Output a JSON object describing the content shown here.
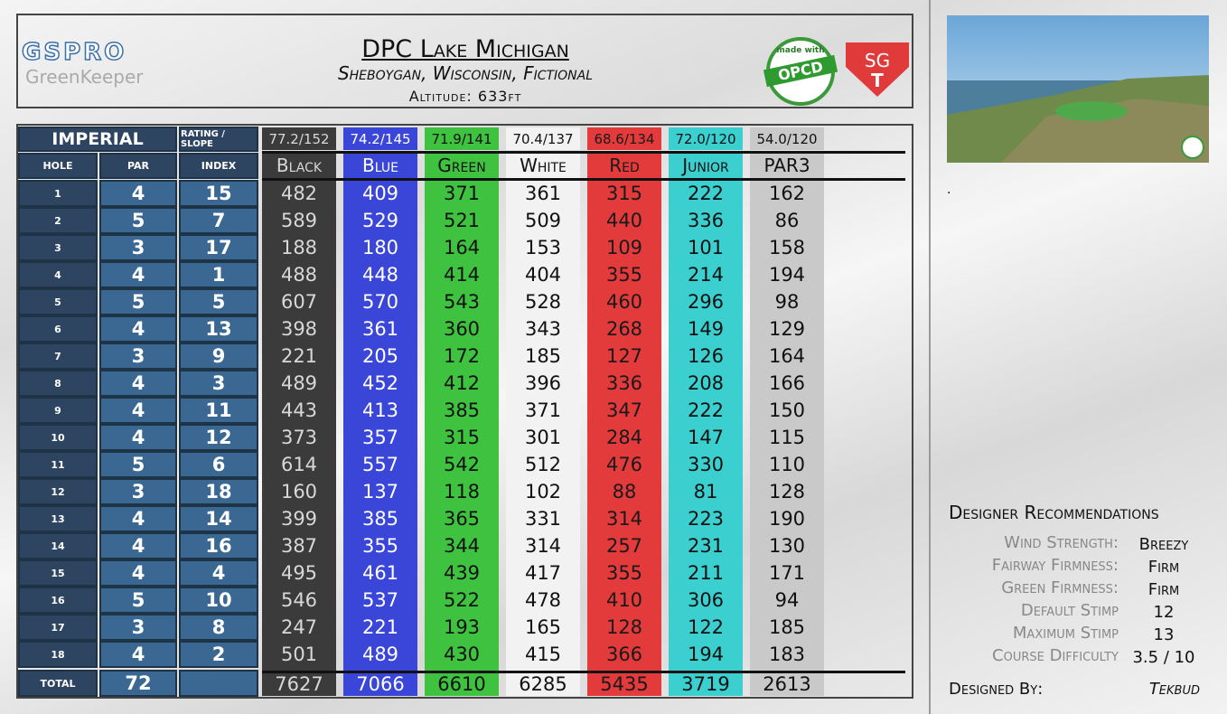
{
  "header": {
    "logo": {
      "brand": "GSPRO",
      "product": "GreenKeeper"
    },
    "title": "DPC Lake Michigan",
    "subtitle": "Sheboygan, Wisconsin, Fictional",
    "altitude": "Altitude: 633ft",
    "badge": {
      "top": "made with",
      "name": "OPCD"
    },
    "sgt": {
      "top": "SG",
      "bottom": "T"
    }
  },
  "table": {
    "system": "IMPERIAL",
    "rating_label": "RATING / SLOPE",
    "columns": {
      "hole": "HOLE",
      "par": "PAR",
      "index": "INDEX"
    },
    "total_label": "TOTAL",
    "total_par": "72",
    "holes": [
      {
        "hole": "1",
        "par": "4",
        "index": "15"
      },
      {
        "hole": "2",
        "par": "5",
        "index": "7"
      },
      {
        "hole": "3",
        "par": "3",
        "index": "17"
      },
      {
        "hole": "4",
        "par": "4",
        "index": "1"
      },
      {
        "hole": "5",
        "par": "5",
        "index": "5"
      },
      {
        "hole": "6",
        "par": "4",
        "index": "13"
      },
      {
        "hole": "7",
        "par": "3",
        "index": "9"
      },
      {
        "hole": "8",
        "par": "4",
        "index": "3"
      },
      {
        "hole": "9",
        "par": "4",
        "index": "11"
      },
      {
        "hole": "10",
        "par": "4",
        "index": "12"
      },
      {
        "hole": "11",
        "par": "5",
        "index": "6"
      },
      {
        "hole": "12",
        "par": "3",
        "index": "18"
      },
      {
        "hole": "13",
        "par": "4",
        "index": "14"
      },
      {
        "hole": "14",
        "par": "4",
        "index": "16"
      },
      {
        "hole": "15",
        "par": "4",
        "index": "4"
      },
      {
        "hole": "16",
        "par": "5",
        "index": "10"
      },
      {
        "hole": "17",
        "par": "3",
        "index": "8"
      },
      {
        "hole": "18",
        "par": "4",
        "index": "2"
      }
    ],
    "tees": [
      {
        "name": "Black",
        "rating": "77.2/152",
        "color": "#3b3b3b",
        "text_color": "#d8d8d8",
        "yards": [
          "482",
          "589",
          "188",
          "488",
          "607",
          "398",
          "221",
          "489",
          "443",
          "373",
          "614",
          "160",
          "399",
          "387",
          "495",
          "546",
          "247",
          "501"
        ],
        "total": "7627"
      },
      {
        "name": "Blue",
        "rating": "74.2/145",
        "color": "#3a46d8",
        "text_color": "#ffffff",
        "yards": [
          "409",
          "529",
          "180",
          "448",
          "570",
          "361",
          "205",
          "452",
          "413",
          "357",
          "557",
          "137",
          "385",
          "355",
          "461",
          "537",
          "221",
          "489"
        ],
        "total": "7066"
      },
      {
        "name": "Green",
        "rating": "71.9/141",
        "color": "#3fc23f",
        "text_color": "#111111",
        "yards": [
          "371",
          "521",
          "164",
          "414",
          "543",
          "360",
          "172",
          "412",
          "385",
          "315",
          "542",
          "118",
          "365",
          "344",
          "439",
          "522",
          "193",
          "430"
        ],
        "total": "6610"
      },
      {
        "name": "White",
        "rating": "70.4/137",
        "color": "#f2f2f2",
        "text_color": "#111111",
        "yards": [
          "361",
          "509",
          "153",
          "404",
          "528",
          "343",
          "185",
          "396",
          "371",
          "301",
          "512",
          "102",
          "331",
          "314",
          "417",
          "478",
          "165",
          "415"
        ],
        "total": "6285"
      },
      {
        "name": "Red",
        "rating": "68.6/134",
        "color": "#e33a3c",
        "text_color": "#1a1a1a",
        "yards": [
          "315",
          "440",
          "109",
          "355",
          "460",
          "268",
          "127",
          "336",
          "347",
          "284",
          "476",
          "88",
          "314",
          "257",
          "355",
          "410",
          "128",
          "366"
        ],
        "total": "5435"
      },
      {
        "name": "Junior",
        "rating": "72.0/120",
        "color": "#3ccfcf",
        "text_color": "#111111",
        "yards": [
          "222",
          "336",
          "101",
          "214",
          "296",
          "149",
          "126",
          "208",
          "222",
          "147",
          "330",
          "81",
          "223",
          "231",
          "211",
          "306",
          "122",
          "194"
        ],
        "total": "3719"
      },
      {
        "name": "PAR3",
        "rating": "54.0/120",
        "color": "#c9c9c9",
        "text_color": "#111111",
        "yards": [
          "162",
          "86",
          "158",
          "194",
          "98",
          "129",
          "164",
          "166",
          "150",
          "115",
          "110",
          "128",
          "190",
          "130",
          "171",
          "94",
          "185",
          "183"
        ],
        "total": "2613"
      }
    ]
  },
  "side": {
    "dot": ".",
    "recommendations": {
      "title": "Designer Recommendations",
      "items": [
        {
          "label": "Wind Strength:",
          "value": "Breezy"
        },
        {
          "label": "Fairway Firmness:",
          "value": "Firm"
        },
        {
          "label": "Green Firmness:",
          "value": "Firm"
        },
        {
          "label": "Default Stimp",
          "value": "12"
        },
        {
          "label": "Maximum Stimp",
          "value": "13"
        },
        {
          "label": "Course Difficulty",
          "value": "3.5 / 10"
        }
      ]
    },
    "designed_by": {
      "label": "Designed By:",
      "value": "Tekbud"
    }
  }
}
